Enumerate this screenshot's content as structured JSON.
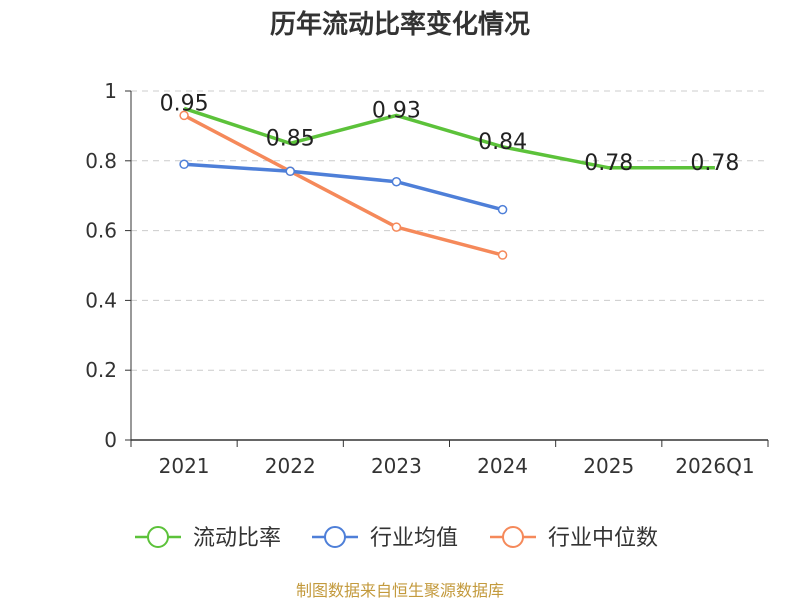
{
  "chart_data": {
    "type": "line",
    "title": "历年流动比率变化情况",
    "categories": [
      "2021",
      "2022",
      "2023",
      "2024",
      "2025",
      "2026Q1"
    ],
    "ylim": [
      0,
      1
    ],
    "yticks": [
      "0",
      "0.2",
      "0.4",
      "0.6",
      "0.8",
      "1"
    ],
    "ytick_values": [
      0,
      0.2,
      0.4,
      0.6,
      0.8,
      1
    ],
    "grid": true,
    "legend_position": "bottom",
    "series": [
      {
        "name": "流动比率",
        "color": "#5cc23a",
        "values": [
          0.95,
          0.85,
          0.93,
          0.84,
          0.78,
          0.78
        ],
        "labels": [
          "0.95",
          "0.85",
          "0.93",
          "0.84",
          "0.78",
          "0.78"
        ],
        "show_labels": true,
        "show_markers": false
      },
      {
        "name": "行业均值",
        "color": "#4e7fd8",
        "values": [
          0.79,
          0.77,
          0.74,
          0.66,
          null,
          null
        ],
        "show_labels": false,
        "show_markers": true
      },
      {
        "name": "行业中位数",
        "color": "#f5895a",
        "values": [
          0.93,
          0.77,
          0.61,
          0.53,
          null,
          null
        ],
        "show_labels": false,
        "show_markers": true
      }
    ]
  },
  "source": "制图数据来自恒生聚源数据库"
}
